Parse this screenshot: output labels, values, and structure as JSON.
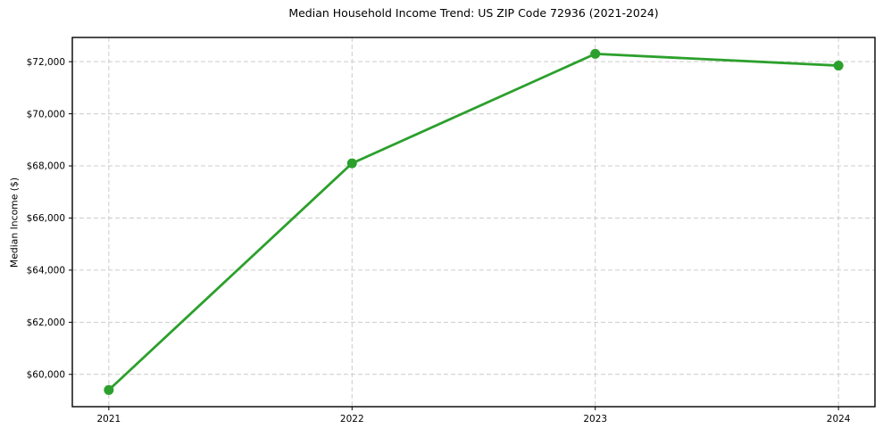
{
  "chart_data": {
    "type": "line",
    "title": "Median Household Income Trend: US ZIP Code 72936 (2021-2024)",
    "xlabel": "",
    "ylabel": "Median Income ($)",
    "x": [
      2021,
      2022,
      2023,
      2024
    ],
    "xtick_labels": [
      "2021",
      "2022",
      "2023",
      "2024"
    ],
    "series": [
      {
        "name": "Median Household Income",
        "values": [
          59400,
          68100,
          72300,
          71850
        ],
        "color": "#2ca02c",
        "marker": "circle",
        "line_width": 2.8,
        "marker_radius": 5.5
      }
    ],
    "xlim": [
      2020.85,
      2024.15
    ],
    "ylim": [
      58760,
      72930
    ],
    "yticks": [
      60000,
      62000,
      64000,
      66000,
      68000,
      70000,
      72000
    ],
    "ytick_labels": [
      "$60,000",
      "$62,000",
      "$64,000",
      "$66,000",
      "$68,000",
      "$70,000",
      "$72,000"
    ],
    "grid": true,
    "grid_style": "dashed",
    "grid_color": "#cccccc",
    "frame_color": "#000000",
    "legend_position": "none",
    "background_color": "#ffffff"
  }
}
